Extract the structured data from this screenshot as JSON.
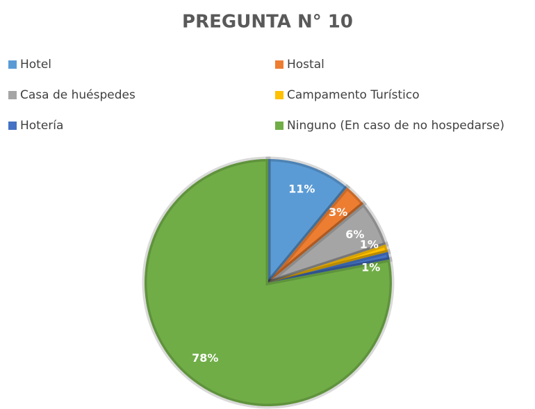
{
  "chart_data": {
    "type": "pie",
    "title": "PREGUNTA N° 10",
    "categories": [
      "Hotel",
      "Hostal",
      "Casa de huéspedes",
      "Campamento Turístico",
      "Hotería",
      "Ninguno (En caso de no hospedarse)"
    ],
    "values": [
      11,
      3,
      6,
      1,
      1,
      78
    ],
    "value_labels": [
      "11%",
      "3%",
      "6%",
      "1%",
      "1%",
      "78%"
    ],
    "colors": [
      "#5b9bd5",
      "#ed7d31",
      "#a5a5a5",
      "#ffc000",
      "#4472c4",
      "#70ad47"
    ],
    "legend": "top"
  }
}
